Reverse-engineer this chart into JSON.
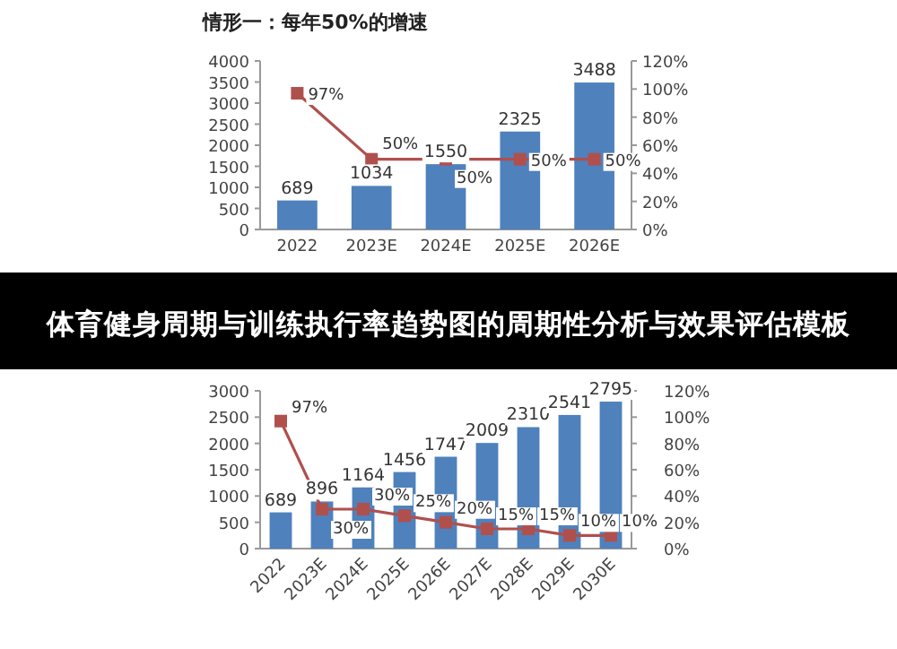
{
  "chart_data": [
    {
      "type": "bar",
      "title": "情形一：每年50%的增速",
      "categories": [
        "2022",
        "2023E",
        "2024E",
        "2025E",
        "2026E"
      ],
      "ylim": [
        0,
        4000
      ],
      "yticks": [
        0,
        500,
        1000,
        1500,
        2000,
        2500,
        3000,
        3500,
        4000
      ],
      "y2lim": [
        0,
        120
      ],
      "y2ticks": [
        {
          "value": 0,
          "label": "0%"
        },
        {
          "value": 20,
          "label": "20%"
        },
        {
          "value": 40,
          "label": "40%"
        },
        {
          "value": 60,
          "label": "60%"
        },
        {
          "value": 80,
          "label": "80%"
        },
        {
          "value": 100,
          "label": "100%"
        },
        {
          "value": 120,
          "label": "120%"
        }
      ],
      "series": [
        {
          "color": "#4f81bd",
          "values": [
            689,
            1034,
            1550,
            2325,
            3488
          ],
          "value_labels": [
            "689",
            "1034",
            "1550",
            "2325",
            "3488"
          ]
        },
        {
          "type": "line",
          "axis": "y2",
          "color": "#b0504d",
          "marker": "square",
          "values": [
            97,
            50,
            50,
            50,
            50
          ],
          "value_labels": [
            "97%",
            "50%",
            "50%",
            "50%",
            "50%"
          ]
        }
      ]
    },
    {
      "type": "bar",
      "title": "体育健身周期与训练执行率趋势图的周期性分析与效果评估模板",
      "categories": [
        "2022",
        "2023E",
        "2024E",
        "2025E",
        "2026E",
        "2027E",
        "2028E",
        "2029E",
        "2030E"
      ],
      "ylim": [
        0,
        3000
      ],
      "yticks": [
        0,
        500,
        1000,
        1500,
        2000,
        2500,
        3000
      ],
      "y2lim": [
        0,
        120
      ],
      "y2ticks": [
        {
          "value": 0,
          "label": "0%"
        },
        {
          "value": 20,
          "label": "20%"
        },
        {
          "value": 40,
          "label": "40%"
        },
        {
          "value": 60,
          "label": "60%"
        },
        {
          "value": 80,
          "label": "80%"
        },
        {
          "value": 100,
          "label": "100%"
        },
        {
          "value": 120,
          "label": "120%"
        }
      ],
      "series": [
        {
          "color": "#4f81bd",
          "values": [
            689,
            896,
            1164,
            1456,
            1747,
            2009,
            2310,
            2541,
            2795
          ],
          "value_labels": [
            "689",
            "896",
            "1164",
            "1456",
            "1747",
            "2009",
            "2310",
            "2541",
            "2795"
          ]
        },
        {
          "type": "line",
          "axis": "y2",
          "color": "#b0504d",
          "marker": "square",
          "values": [
            97,
            30,
            30,
            25,
            20,
            15,
            15,
            10,
            10
          ],
          "value_labels": [
            "97%",
            "30%",
            "30%",
            "25%",
            "20%",
            "15%",
            "15%",
            "10%",
            "10%"
          ]
        }
      ]
    }
  ]
}
